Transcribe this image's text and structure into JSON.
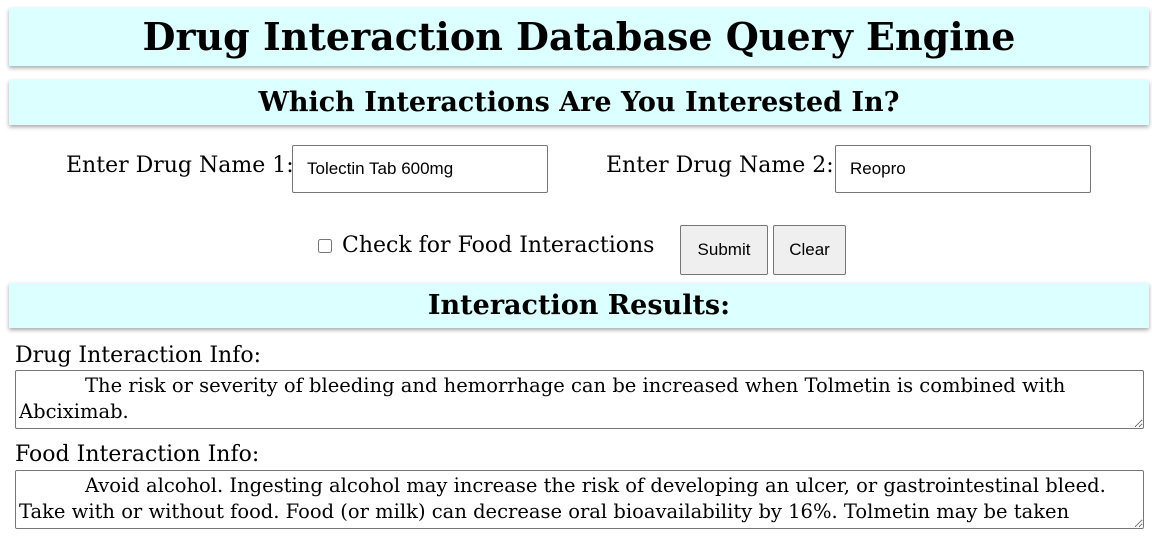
{
  "header": {
    "title": "Drug Interaction Database Query Engine",
    "question": "Which Interactions Are You Interested In?"
  },
  "form": {
    "drug1_label": "Enter Drug Name 1:",
    "drug1_value": "Tolectin Tab 600mg",
    "drug2_label": "Enter Drug Name 2:",
    "drug2_value": "Reopro",
    "food_check_label": "Check for Food Interactions",
    "food_check_checked": false,
    "submit_label": "Submit",
    "clear_label": "Clear"
  },
  "results": {
    "heading": "Interaction Results:",
    "drug_info_label": "Drug Interaction Info:",
    "drug_info_text": "The risk or severity of bleeding and hemorrhage can be increased when Tolmetin is combined with Abciximab.",
    "food_info_label": "Food Interaction Info:",
    "food_info_text": "Avoid alcohol. Ingesting alcohol may increase the risk of developing an ulcer, or gastrointestinal bleed. Take with or without food. Food (or milk) can decrease oral bioavailability by 16%. Tolmetin may be taken with"
  },
  "colors": {
    "banner_background": "#dcffff",
    "button_background": "#efefef",
    "border": "#767676"
  }
}
